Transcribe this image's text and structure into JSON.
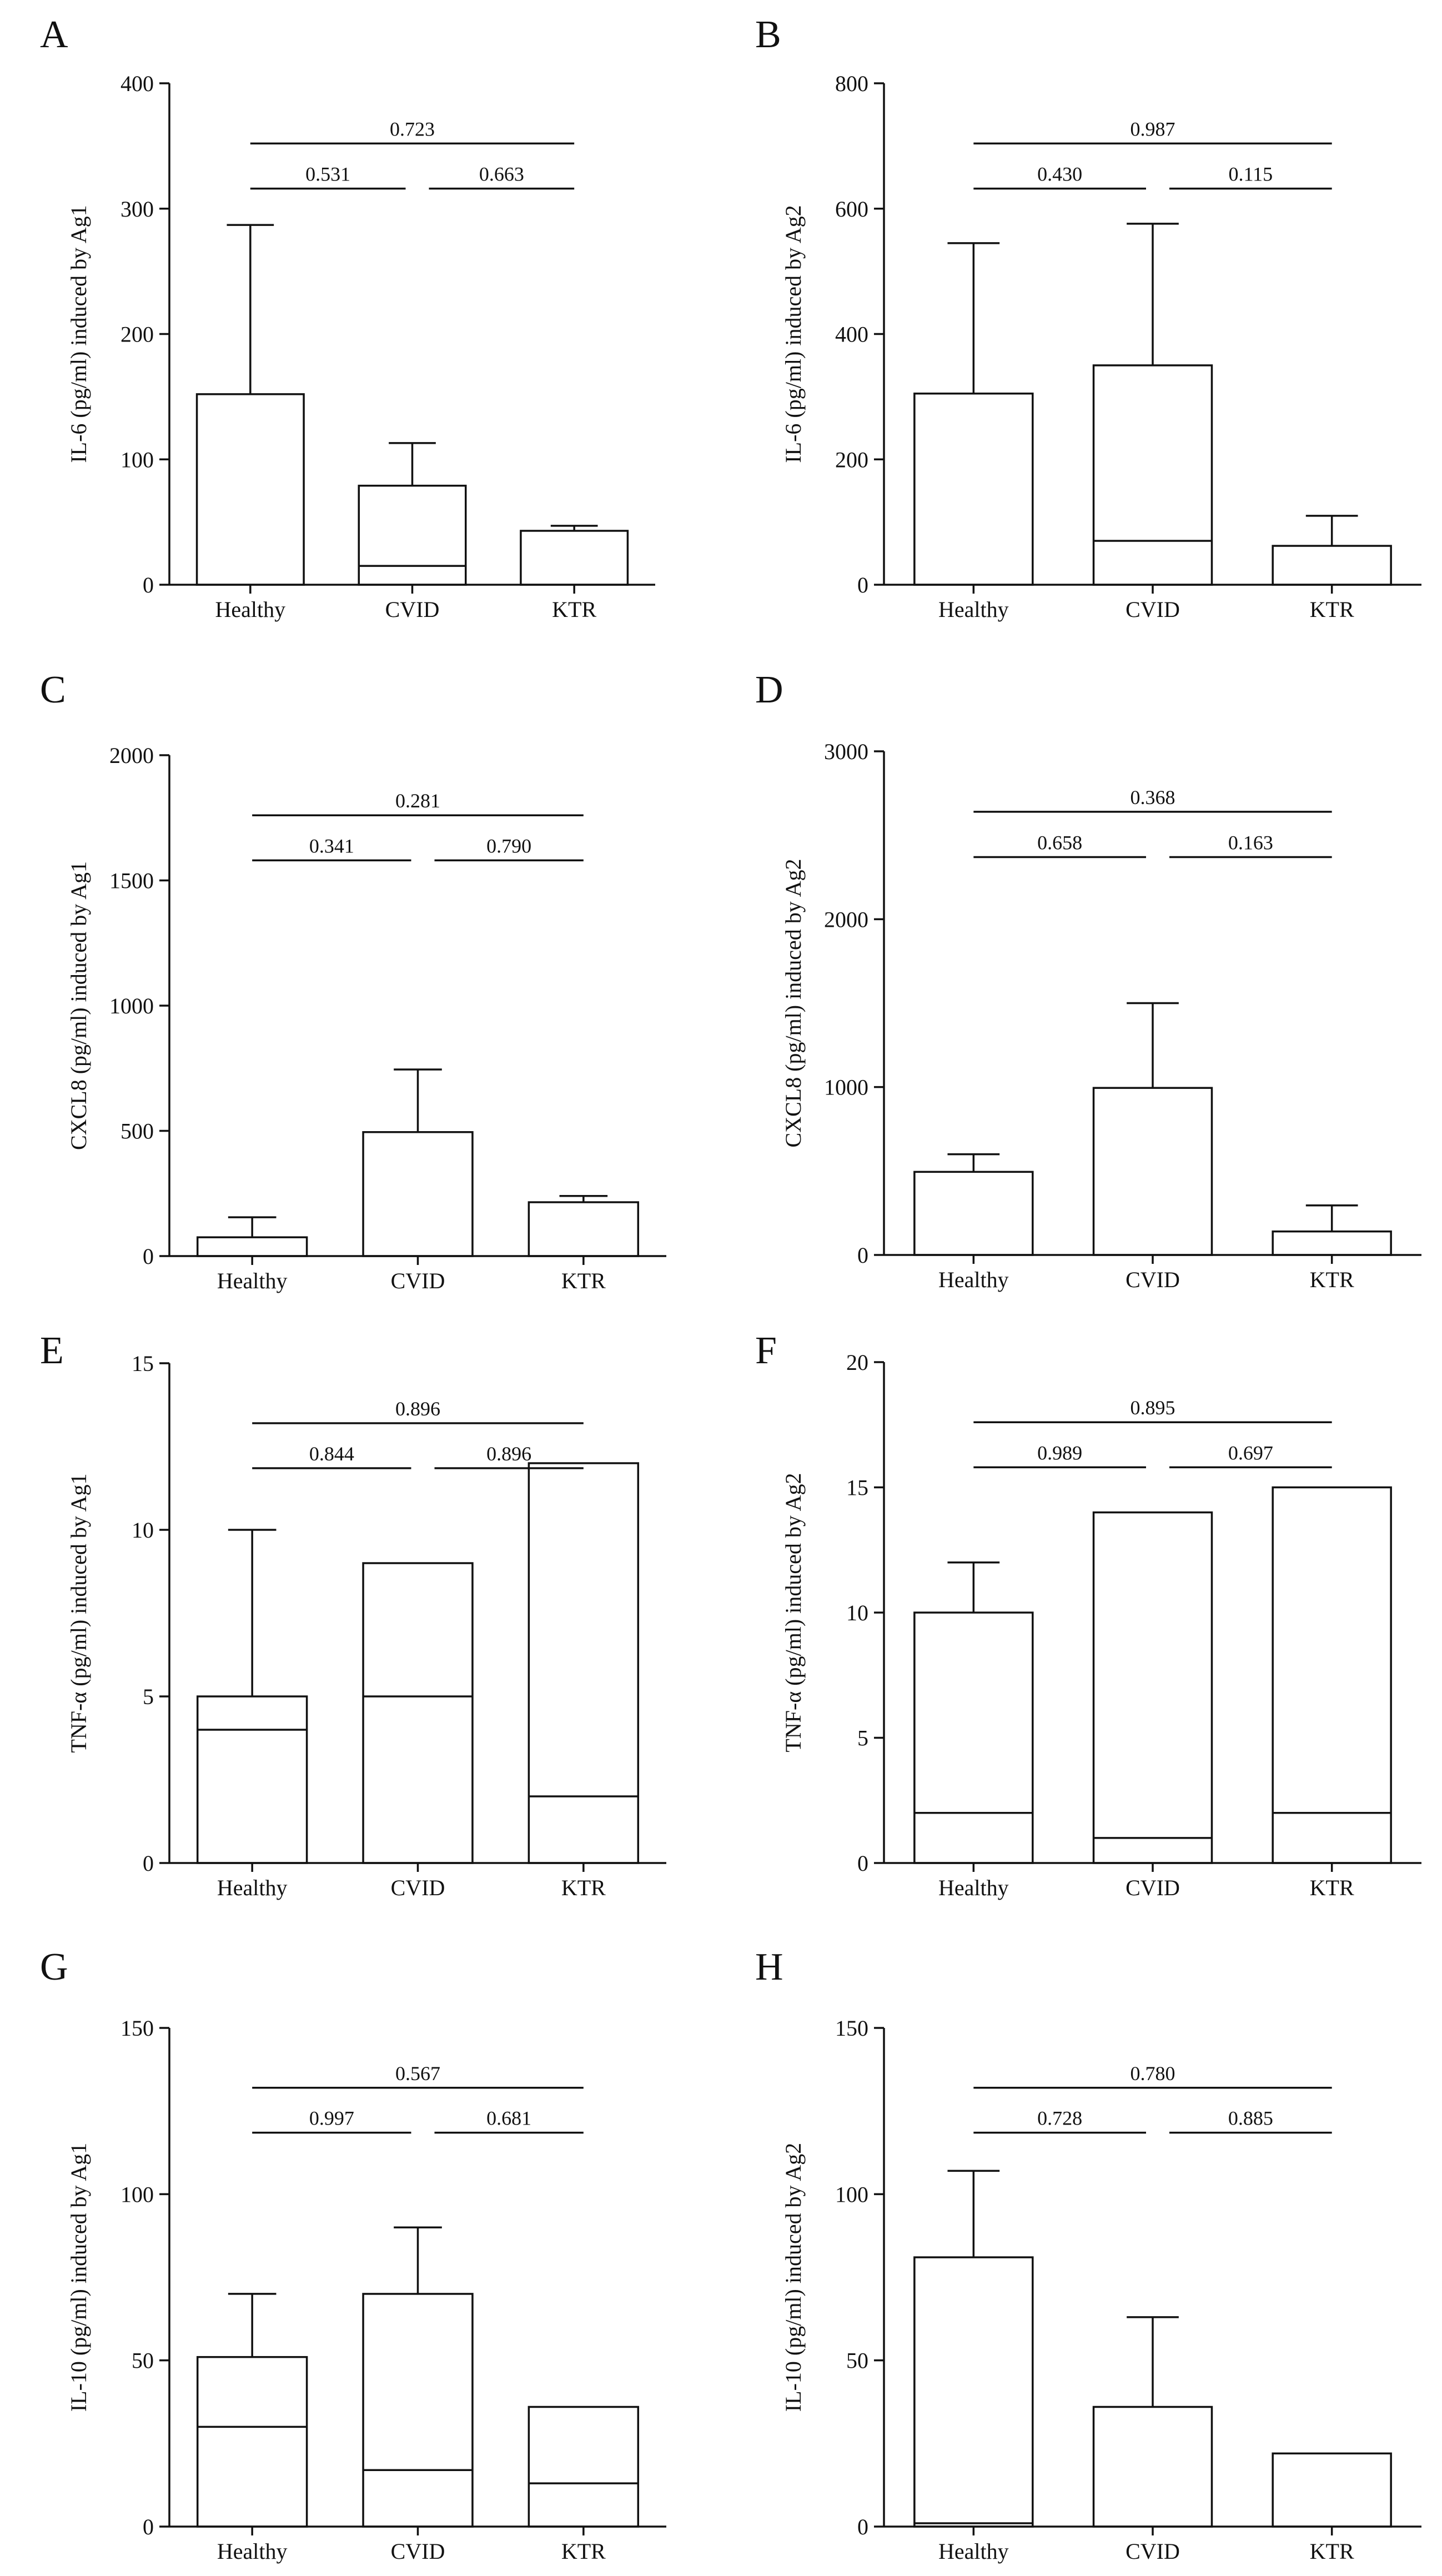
{
  "chart_data": [
    {
      "panel": "A",
      "type": "bar",
      "ylabel": "IL-6 (pg/ml) induced by Ag1",
      "categories": [
        "Healthy",
        "CVID",
        "KTR"
      ],
      "ylim": [
        0,
        400
      ],
      "yticks": [
        "0",
        "100",
        "200",
        "300",
        "400"
      ],
      "boxes": [
        {
          "low": 0,
          "median": 0,
          "high": 152,
          "whisker": 287
        },
        {
          "low": 0,
          "median": 15,
          "high": 79,
          "whisker": 113
        },
        {
          "low": 0,
          "median": 0,
          "high": 43,
          "whisker": 47
        }
      ],
      "comparisons": [
        {
          "from": 0,
          "to": 2,
          "label": "0.723"
        },
        {
          "from": 0,
          "to": 1,
          "label": "0.531"
        },
        {
          "from": 1,
          "to": 2,
          "label": "0.663"
        }
      ]
    },
    {
      "panel": "B",
      "type": "bar",
      "ylabel": "IL-6 (pg/ml) induced by Ag2",
      "categories": [
        "Healthy",
        "CVID",
        "KTR"
      ],
      "ylim": [
        0,
        800
      ],
      "yticks": [
        "0",
        "200",
        "400",
        "600",
        "800"
      ],
      "boxes": [
        {
          "low": 0,
          "median": 0,
          "high": 305,
          "whisker": 545
        },
        {
          "low": 0,
          "median": 70,
          "high": 350,
          "whisker": 576
        },
        {
          "low": 0,
          "median": 0,
          "high": 62,
          "whisker": 110
        }
      ],
      "comparisons": [
        {
          "from": 0,
          "to": 2,
          "label": "0.987"
        },
        {
          "from": 0,
          "to": 1,
          "label": "0.430"
        },
        {
          "from": 1,
          "to": 2,
          "label": "0.115"
        }
      ]
    },
    {
      "panel": "C",
      "type": "bar",
      "ylabel": "CXCL8 (pg/ml) induced by Ag1",
      "categories": [
        "Healthy",
        "CVID",
        "KTR"
      ],
      "ylim": [
        0,
        2000
      ],
      "yticks": [
        "0",
        "500",
        "1000",
        "1500",
        "2000"
      ],
      "boxes": [
        {
          "low": 0,
          "median": 0,
          "high": 75,
          "whisker": 155
        },
        {
          "low": 0,
          "median": 0,
          "high": 495,
          "whisker": 745
        },
        {
          "low": 0,
          "median": 0,
          "high": 215,
          "whisker": 240
        }
      ],
      "comparisons": [
        {
          "from": 0,
          "to": 2,
          "label": "0.281"
        },
        {
          "from": 0,
          "to": 1,
          "label": "0.341"
        },
        {
          "from": 1,
          "to": 2,
          "label": "0.790"
        }
      ]
    },
    {
      "panel": "D",
      "type": "bar",
      "ylabel": "CXCL8 (pg/ml) induced by Ag2",
      "categories": [
        "Healthy",
        "CVID",
        "KTR"
      ],
      "ylim": [
        0,
        3000
      ],
      "yticks": [
        "0",
        "1000",
        "2000",
        "3000"
      ],
      "boxes": [
        {
          "low": 0,
          "median": 0,
          "high": 495,
          "whisker": 600
        },
        {
          "low": 0,
          "median": 0,
          "high": 995,
          "whisker": 1500
        },
        {
          "low": 0,
          "median": 0,
          "high": 140,
          "whisker": 295
        }
      ],
      "comparisons": [
        {
          "from": 0,
          "to": 2,
          "label": "0.368"
        },
        {
          "from": 0,
          "to": 1,
          "label": "0.658"
        },
        {
          "from": 1,
          "to": 2,
          "label": "0.163"
        }
      ]
    },
    {
      "panel": "E",
      "type": "bar",
      "ylabel": "TNF-α (pg/ml) induced by Ag1",
      "categories": [
        "Healthy",
        "CVID",
        "KTR"
      ],
      "ylim": [
        0,
        15
      ],
      "yticks": [
        "0",
        "5",
        "10",
        "15"
      ],
      "boxes": [
        {
          "low": 0,
          "median": 4,
          "high": 5,
          "whisker": 10
        },
        {
          "low": 0,
          "median": 5,
          "high": 9,
          "whisker": null
        },
        {
          "low": 0,
          "median": 2,
          "high": 12,
          "whisker": null
        }
      ],
      "comparisons": [
        {
          "from": 0,
          "to": 2,
          "label": "0.896"
        },
        {
          "from": 0,
          "to": 1,
          "label": "0.844"
        },
        {
          "from": 1,
          "to": 2,
          "label": "0.896"
        }
      ]
    },
    {
      "panel": "F",
      "type": "bar",
      "ylabel": "TNF-α (pg/ml) induced by Ag2",
      "categories": [
        "Healthy",
        "CVID",
        "KTR"
      ],
      "ylim": [
        0,
        20
      ],
      "yticks": [
        "0",
        "5",
        "10",
        "15",
        "20"
      ],
      "boxes": [
        {
          "low": 0,
          "median": 2,
          "high": 10,
          "whisker": 12
        },
        {
          "low": 0,
          "median": 1,
          "high": 14,
          "whisker": null
        },
        {
          "low": 0,
          "median": 2,
          "high": 15,
          "whisker": null
        }
      ],
      "comparisons": [
        {
          "from": 0,
          "to": 2,
          "label": "0.895"
        },
        {
          "from": 0,
          "to": 1,
          "label": "0.989"
        },
        {
          "from": 1,
          "to": 2,
          "label": "0.697"
        }
      ]
    },
    {
      "panel": "G",
      "type": "bar",
      "ylabel": "IL-10 (pg/ml) induced by Ag1",
      "categories": [
        "Healthy",
        "CVID",
        "KTR"
      ],
      "ylim": [
        0,
        150
      ],
      "yticks": [
        "0",
        "50",
        "100",
        "150"
      ],
      "boxes": [
        {
          "low": 0,
          "median": 30,
          "high": 51,
          "whisker": 70
        },
        {
          "low": 0,
          "median": 17,
          "high": 70,
          "whisker": 90
        },
        {
          "low": 0,
          "median": 13,
          "high": 36,
          "whisker": null
        }
      ],
      "comparisons": [
        {
          "from": 0,
          "to": 2,
          "label": "0.567"
        },
        {
          "from": 0,
          "to": 1,
          "label": "0.997"
        },
        {
          "from": 1,
          "to": 2,
          "label": "0.681"
        }
      ]
    },
    {
      "panel": "H",
      "type": "bar",
      "ylabel": "IL-10 (pg/ml) induced by Ag2",
      "categories": [
        "Healthy",
        "CVID",
        "KTR"
      ],
      "ylim": [
        0,
        150
      ],
      "yticks": [
        "0",
        "50",
        "100",
        "150"
      ],
      "boxes": [
        {
          "low": 0,
          "median": 1,
          "high": 81,
          "whisker": 107
        },
        {
          "low": 0,
          "median": 0,
          "high": 36,
          "whisker": 63
        },
        {
          "low": 0,
          "median": 0,
          "high": 22,
          "whisker": null
        }
      ],
      "comparisons": [
        {
          "from": 0,
          "to": 2,
          "label": "0.780"
        },
        {
          "from": 0,
          "to": 1,
          "label": "0.728"
        },
        {
          "from": 1,
          "to": 2,
          "label": "0.885"
        }
      ]
    }
  ]
}
